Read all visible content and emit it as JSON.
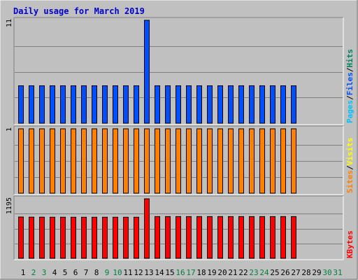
{
  "chart_data": {
    "type": "bar",
    "title": "Daily usage for March 2019",
    "categories": [
      "1",
      "2",
      "3",
      "4",
      "5",
      "6",
      "7",
      "8",
      "9",
      "10",
      "11",
      "12",
      "13",
      "14",
      "15",
      "16",
      "17",
      "18",
      "19",
      "20",
      "21",
      "22",
      "23",
      "24",
      "25",
      "26",
      "27",
      "28",
      "29",
      "30",
      "31"
    ],
    "weekend_days": [
      "2",
      "3",
      "9",
      "10",
      "16",
      "17",
      "23",
      "24",
      "30",
      "31"
    ],
    "colors": {
      "background": "#c0c0c0",
      "title": "#0000cc",
      "hits": "#008060",
      "files": "#0050ff",
      "pages": "#00c0ff",
      "visits": "#ffff00",
      "sites": "#ff8000",
      "kbytes": "#ff0000",
      "weekday_label": "#000000",
      "weekend_label": "#008040"
    },
    "panels": [
      {
        "name": "hits-files-pages",
        "max_label": "11",
        "ylim": [
          0,
          11
        ],
        "legend": [
          {
            "text": "Pages",
            "color": "#00c0ff"
          },
          {
            "text": "/",
            "color": "#000000"
          },
          {
            "text": "Files",
            "color": "#0050ff"
          },
          {
            "text": "/",
            "color": "#000000"
          },
          {
            "text": "Hits",
            "color": "#008060"
          }
        ],
        "series": [
          {
            "key": "files",
            "color": "#0050ff",
            "values": [
              4,
              4,
              4,
              4,
              4,
              4,
              4,
              4,
              4,
              4,
              4,
              4,
              11,
              4,
              4,
              4,
              4,
              4,
              4,
              4,
              4,
              4,
              4,
              4,
              4,
              4,
              4,
              0,
              0,
              0,
              0
            ]
          }
        ]
      },
      {
        "name": "visits-sites",
        "max_label": "1",
        "ylim": [
          0,
          1
        ],
        "legend": [
          {
            "text": "Sites",
            "color": "#ff8000"
          },
          {
            "text": "/",
            "color": "#000000"
          },
          {
            "text": "Visits",
            "color": "#ffff00"
          }
        ],
        "series": [
          {
            "key": "sites",
            "color": "#ff8000",
            "values": [
              1,
              1,
              1,
              1,
              1,
              1,
              1,
              1,
              1,
              1,
              1,
              1,
              1,
              1,
              1,
              1,
              1,
              1,
              1,
              1,
              1,
              1,
              1,
              1,
              1,
              1,
              1,
              0,
              0,
              0,
              0
            ]
          }
        ]
      },
      {
        "name": "kbytes",
        "max_label": "1195",
        "ylim": [
          0,
          1195
        ],
        "legend": [
          {
            "text": "KBytes",
            "color": "#ff0000"
          }
        ],
        "series": [
          {
            "key": "kbytes",
            "color": "#ff0000",
            "values": [
              830,
              827,
              827,
              825,
              825,
              825,
              825,
              825,
              825,
              825,
              825,
              825,
              1195,
              838,
              838,
              838,
              838,
              838,
              838,
              838,
              838,
              838,
              838,
              838,
              838,
              838,
              838,
              0,
              0,
              0,
              0
            ]
          }
        ]
      }
    ]
  }
}
